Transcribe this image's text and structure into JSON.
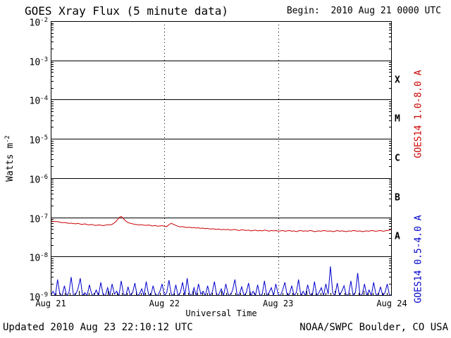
{
  "header": {
    "title": "GOES Xray Flux (5 minute data)",
    "begin": "Begin:  2010 Aug 21 0000 UTC"
  },
  "footer": {
    "updated": "Updated 2010 Aug 23 22:10:12 UTC",
    "source": "NOAA/SWPC Boulder, CO USA"
  },
  "axes": {
    "ylabel_base": "Watts m",
    "ylabel_exp": "-2",
    "xlabel": "Universal Time",
    "x_ticks": [
      "Aug 21",
      "Aug 22",
      "Aug 23",
      "Aug 24"
    ],
    "y_tick_exponents": [
      -2,
      -3,
      -4,
      -5,
      -6,
      -7,
      -8,
      -9
    ],
    "flare_classes": [
      "X",
      "M",
      "C",
      "B",
      "A"
    ]
  },
  "series_labels": {
    "red": "GOES14 1.0-8.0 A",
    "blue": "GOES14 0.5-4.0 A"
  },
  "colors": {
    "red": "#cc0000",
    "blue": "#0000cc",
    "axis": "#000000"
  },
  "chart_data": {
    "type": "line",
    "title": "GOES Xray Flux (5 minute data)",
    "xlabel": "Universal Time",
    "ylabel": "Watts m^-2",
    "x_start": "2010 Aug 21 0000 UTC",
    "x_end": "2010 Aug 24 0000 UTC",
    "x_span_days": 3,
    "y_scale": "log",
    "ylim": [
      1e-09,
      0.01
    ],
    "x_ticks": [
      "Aug 21",
      "Aug 22",
      "Aug 23",
      "Aug 24"
    ],
    "legend_position": "right-rotated",
    "grid": {
      "horizontal_decades": true,
      "vertical_dashed_at_days": [
        1,
        2
      ]
    },
    "series": [
      {
        "name": "GOES14 1.0-8.0 A",
        "color": "#cc0000",
        "units": "W/m^2",
        "scale": 1e-08,
        "values": [
          8.2,
          7.9,
          7.7,
          7.8,
          7.5,
          7.3,
          7.4,
          7.2,
          7.0,
          7.1,
          6.9,
          6.8,
          7.0,
          6.7,
          6.6,
          6.8,
          6.5,
          6.4,
          6.6,
          6.3,
          6.2,
          6.4,
          6.3,
          6.1,
          6.3,
          6.5,
          6.4,
          6.6,
          7.2,
          8.2,
          9.8,
          10.6,
          9.2,
          8.0,
          7.4,
          7.0,
          6.8,
          6.6,
          6.5,
          6.4,
          6.5,
          6.3,
          6.2,
          6.4,
          6.1,
          6.0,
          6.2,
          5.9,
          6.0,
          6.1,
          5.9,
          5.8,
          6.5,
          7.0,
          6.6,
          6.2,
          5.9,
          5.7,
          5.8,
          5.6,
          5.5,
          5.6,
          5.4,
          5.5,
          5.3,
          5.4,
          5.2,
          5.3,
          5.1,
          5.2,
          5.0,
          5.1,
          5.0,
          4.9,
          5.0,
          4.8,
          4.9,
          4.8,
          4.9,
          4.7,
          4.8,
          4.9,
          4.7,
          4.6,
          4.8,
          4.7,
          4.6,
          4.7,
          4.5,
          4.6,
          4.7,
          4.5,
          4.6,
          4.5,
          4.7,
          4.6,
          4.4,
          4.6,
          4.5,
          4.6,
          4.4,
          4.5,
          4.6,
          4.4,
          4.5,
          4.6,
          4.4,
          4.5,
          4.3,
          4.5,
          4.6,
          4.4,
          4.5,
          4.4,
          4.6,
          4.5,
          4.3,
          4.4,
          4.5,
          4.4,
          4.6,
          4.5,
          4.4,
          4.5,
          4.3,
          4.4,
          4.6,
          4.4,
          4.5,
          4.4,
          4.3,
          4.5,
          4.4,
          4.6,
          4.5,
          4.4,
          4.5,
          4.3,
          4.4,
          4.5,
          4.4,
          4.6,
          4.5,
          4.4,
          4.5,
          4.6,
          4.4,
          4.5,
          4.6,
          4.7,
          5.0
        ]
      },
      {
        "name": "GOES14 0.5-4.0 A",
        "color": "#0000cc",
        "units": "W/m^2",
        "scale": 1e-09,
        "values": [
          1.0,
          1.3,
          1.0,
          2.6,
          1.1,
          1.0,
          1.8,
          1.0,
          1.2,
          3.0,
          1.0,
          1.1,
          1.5,
          2.8,
          1.0,
          1.2,
          1.0,
          1.9,
          1.1,
          1.0,
          1.4,
          1.0,
          2.2,
          1.1,
          1.0,
          1.6,
          1.0,
          2.0,
          1.1,
          1.3,
          1.0,
          2.4,
          1.1,
          1.0,
          1.7,
          1.0,
          1.2,
          2.1,
          1.0,
          1.1,
          1.5,
          1.0,
          2.3,
          1.1,
          1.0,
          1.8,
          1.1,
          1.0,
          1.3,
          2.0,
          1.0,
          1.2,
          2.5,
          1.1,
          1.0,
          1.9,
          1.0,
          1.2,
          2.2,
          1.0,
          2.8,
          1.1,
          1.0,
          1.6,
          1.0,
          2.0,
          1.1,
          1.3,
          1.0,
          1.8,
          1.0,
          1.2,
          2.3,
          1.0,
          1.1,
          1.5,
          1.0,
          2.0,
          1.1,
          1.0,
          1.4,
          2.6,
          1.0,
          1.1,
          1.7,
          1.0,
          1.2,
          2.1,
          1.0,
          1.3,
          1.0,
          1.9,
          1.0,
          1.1,
          2.4,
          1.0,
          1.2,
          1.6,
          1.0,
          2.0,
          1.1,
          1.0,
          1.4,
          2.2,
          1.0,
          1.1,
          1.8,
          1.0,
          1.2,
          2.6,
          1.0,
          1.3,
          1.0,
          1.9,
          1.1,
          1.0,
          2.3,
          1.0,
          1.2,
          1.6,
          1.0,
          2.0,
          1.1,
          5.6,
          1.2,
          1.0,
          2.1,
          1.0,
          1.3,
          1.8,
          1.0,
          1.1,
          2.4,
          1.0,
          1.2,
          3.8,
          1.0,
          1.1,
          2.0,
          1.0,
          1.4,
          1.0,
          2.2,
          1.1,
          1.0,
          1.7,
          1.0,
          1.2,
          2.0,
          1.0,
          1.1
        ]
      }
    ]
  }
}
